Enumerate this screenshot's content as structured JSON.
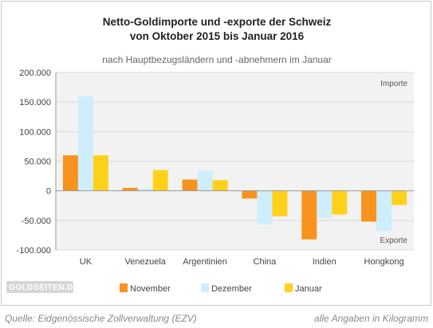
{
  "chart_data": {
    "type": "bar",
    "title_line1": "Netto-Goldimporte und -exporte der Schweiz",
    "title_line2": "von Oktober 2015 bis Januar 2016",
    "subtitle": "nach Hauptbezugsländern und -abnehmern im Januar",
    "categories": [
      "UK",
      "Venezuela",
      "Argentinien",
      "China",
      "Indien",
      "Hongkong"
    ],
    "series": [
      {
        "name": "November",
        "color": "#f7931e",
        "values": [
          60000,
          5000,
          19000,
          -13000,
          -82000,
          -52000
        ]
      },
      {
        "name": "Dezember",
        "color": "#cfeefc",
        "values": [
          160000,
          4000,
          34000,
          -57000,
          -46000,
          -68000
        ]
      },
      {
        "name": "Januar",
        "color": "#ffd11a",
        "values": [
          60000,
          35000,
          18000,
          -43000,
          -40000,
          -24000
        ]
      }
    ],
    "ylim": [
      -100000,
      200000
    ],
    "yticks": [
      200000,
      150000,
      100000,
      50000,
      0,
      -50000,
      -100000
    ],
    "ytick_labels": [
      "200.000",
      "150.000",
      "100.000",
      "50.000",
      "0",
      "-50.000",
      "-100.000"
    ],
    "region_labels": {
      "top": "Importe",
      "bottom": "Exporte"
    },
    "grid": true,
    "legend_position": "bottom"
  },
  "watermark": "GOLDSEITEN.DE",
  "footer": {
    "source": "Quelle: Eidgenössische Zollverwaltung (EZV)",
    "units": "alle Angaben in Kilogramm"
  },
  "colors": {
    "plot_background": "#f2f2f2",
    "grid": "#d9d9d9",
    "axis": "#999999",
    "watermark_bg": "#d6d6d6"
  }
}
